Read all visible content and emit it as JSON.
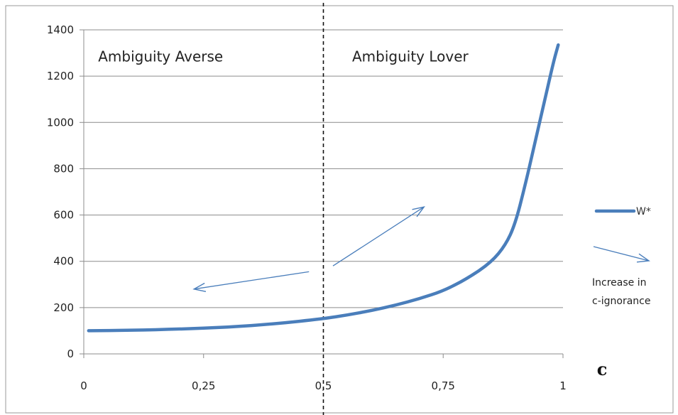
{
  "chart_data": {
    "type": "line",
    "xlabel": "c",
    "ylabel": "",
    "xlim": [
      0,
      1
    ],
    "ylim": [
      0,
      1400
    ],
    "x_ticks": [
      "0",
      "0,25",
      "0,5",
      "0,75",
      "1"
    ],
    "y_ticks": [
      "0",
      "200",
      "400",
      "600",
      "800",
      "1000",
      "1200",
      "1400"
    ],
    "grid": "horizontal",
    "legend_position": "right",
    "series": [
      {
        "name": "W*",
        "color": "#4a7ebb",
        "x": [
          0.01,
          0.1,
          0.2,
          0.3,
          0.4,
          0.5,
          0.55,
          0.6,
          0.65,
          0.7,
          0.75,
          0.8,
          0.85,
          0.88,
          0.9,
          0.92,
          0.94,
          0.96,
          0.98,
          0.99
        ],
        "y": [
          100,
          102,
          107,
          115,
          130,
          152,
          168,
          187,
          210,
          238,
          272,
          325,
          395,
          470,
          560,
          720,
          900,
          1080,
          1260,
          1335
        ]
      }
    ],
    "divider": {
      "x": 0.5,
      "style": "dashed"
    },
    "regions": [
      {
        "label": "Ambiguity Averse",
        "x": 0.03,
        "y": 1300
      },
      {
        "label": "Ambiguity Lover",
        "x": 0.56,
        "y": 1300
      }
    ],
    "annotation_arrows": [
      {
        "from": [
          0.47,
          355
        ],
        "to": [
          0.23,
          280
        ]
      },
      {
        "from": [
          0.52,
          380
        ],
        "to": [
          0.71,
          635
        ]
      }
    ],
    "legend_note": {
      "line1": "Increase in",
      "line2": "c-ignorance"
    },
    "colors": {
      "series": "#4a7ebb",
      "arrow": "#4a7ebb",
      "grid": "#8c8c8c",
      "axis": "#8c8c8c"
    }
  }
}
